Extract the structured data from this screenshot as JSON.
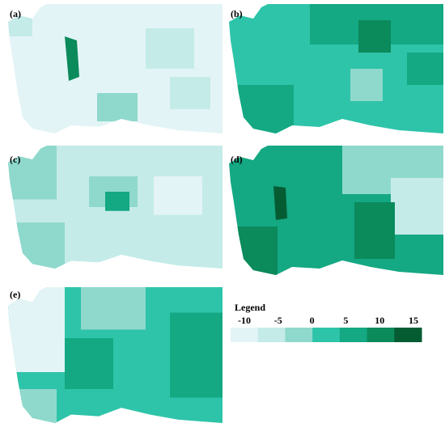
{
  "panels": [
    {
      "label": "(a)"
    },
    {
      "label": "(b)"
    },
    {
      "label": "(c)"
    },
    {
      "label": "(d)"
    },
    {
      "label": "(e)"
    }
  ],
  "legend": {
    "title": "Legend",
    "ticks": [
      -10,
      -5,
      0,
      5,
      10,
      15
    ],
    "colors": [
      "#e3f4f6",
      "#c4ebe8",
      "#8fd9cc",
      "#2ec4a9",
      "#14a883",
      "#0b8a5c",
      "#055c33"
    ]
  }
}
